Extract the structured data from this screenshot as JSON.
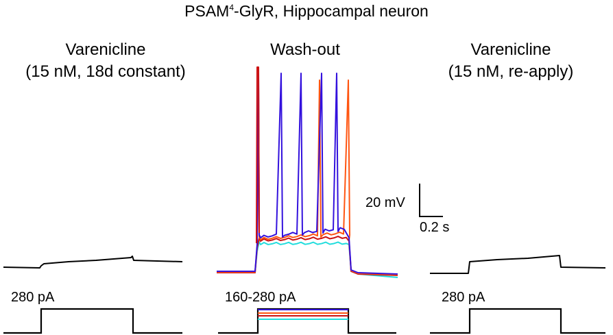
{
  "title_main": "PSAM",
  "title_sup": "4",
  "title_rest": "-GlyR, Hippocampal neuron",
  "panels": [
    {
      "label_line1": "Varenicline",
      "label_line2": "(15 nM, 18d constant)",
      "step_label": "280 pA"
    },
    {
      "label_line1": "Wash-out",
      "label_line2": "",
      "step_label": "160-280 pA"
    },
    {
      "label_line1": "Varenicline",
      "label_line2": "(15 nM, re-apply)",
      "step_label": "280 pA"
    }
  ],
  "scalebar": {
    "voltage_label": "20 mV",
    "time_label": "0.2 s"
  },
  "colors": {
    "black": "#000000",
    "purple": "#3311dd",
    "orange": "#ff5511",
    "red": "#cc1111",
    "cyan": "#22dddd"
  },
  "chart_data": {
    "type": "line",
    "title": "PSAM4-GlyR, Hippocampal neuron",
    "xlabel": "",
    "ylabel": "",
    "panels": [
      {
        "condition": "Varenicline (15 nM, 18d constant)",
        "current_steps_pA": [
          280
        ],
        "traces": [
          {
            "color": "black",
            "spikes": 0,
            "baseline_mV": 0,
            "step_depolarization_mV": 3
          }
        ]
      },
      {
        "condition": "Wash-out",
        "current_steps_pA": [
          160,
          200,
          240,
          280
        ],
        "traces": [
          {
            "color": "purple",
            "spikes": 5,
            "step_depolarization_mV": 19
          },
          {
            "color": "orange",
            "spikes": 2,
            "step_depolarization_mV": 17
          },
          {
            "color": "red",
            "spikes": 1,
            "step_depolarization_mV": 15
          },
          {
            "color": "cyan",
            "spikes": 0,
            "step_depolarization_mV": 12
          }
        ]
      },
      {
        "condition": "Varenicline (15 nM, re-apply)",
        "current_steps_pA": [
          280
        ],
        "traces": [
          {
            "color": "black",
            "spikes": 0,
            "step_depolarization_mV": 5
          }
        ]
      }
    ],
    "scalebar": {
      "voltage_mV": 20,
      "time_s": 0.2
    }
  }
}
